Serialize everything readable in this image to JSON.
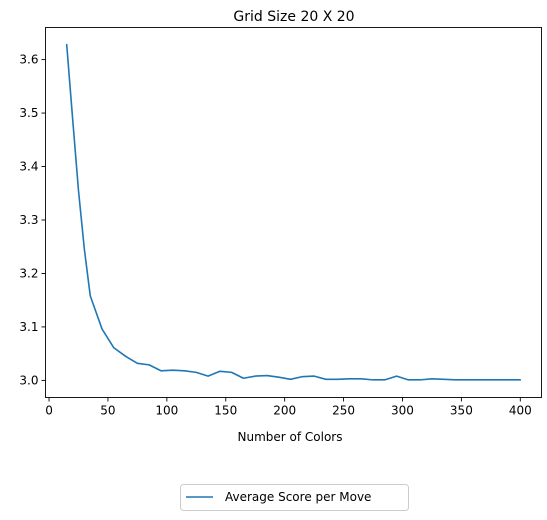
{
  "chart_data": {
    "type": "line",
    "title": "Grid Size 20 X 20",
    "xlabel": "Number of Colors",
    "ylabel": "",
    "xlim": [
      -3,
      418
    ],
    "ylim": [
      2.968,
      3.66
    ],
    "xticks": [
      0,
      50,
      100,
      150,
      200,
      250,
      300,
      350,
      400
    ],
    "yticks": [
      3.0,
      3.1,
      3.2,
      3.3,
      3.4,
      3.5,
      3.6
    ],
    "xtick_labels": [
      "0",
      "50",
      "100",
      "150",
      "200",
      "250",
      "300",
      "350",
      "400"
    ],
    "ytick_labels": [
      "3.0",
      "3.1",
      "3.2",
      "3.3",
      "3.4",
      "3.5",
      "3.6"
    ],
    "grid": false,
    "legend_position": "below plot, centered",
    "series": [
      {
        "name": "Average Score per Move",
        "color": "#1f77b4",
        "x": [
          15,
          20,
          25,
          30,
          35,
          45,
          55,
          65,
          75,
          85,
          95,
          105,
          115,
          125,
          135,
          145,
          155,
          165,
          175,
          185,
          195,
          205,
          215,
          225,
          235,
          245,
          255,
          265,
          275,
          285,
          295,
          305,
          315,
          325,
          335,
          345,
          355,
          365,
          375,
          385,
          400
        ],
        "y": [
          3.628,
          3.49,
          3.355,
          3.245,
          3.158,
          3.096,
          3.061,
          3.045,
          3.032,
          3.029,
          3.018,
          3.019,
          3.018,
          3.015,
          3.008,
          3.017,
          3.015,
          3.004,
          3.008,
          3.009,
          3.006,
          3.002,
          3.007,
          3.008,
          3.002,
          3.002,
          3.003,
          3.003,
          3.001,
          3.001,
          3.008,
          3.001,
          3.001,
          3.003,
          3.002,
          3.001,
          3.001,
          3.001,
          3.001,
          3.001,
          3.001
        ]
      }
    ]
  }
}
